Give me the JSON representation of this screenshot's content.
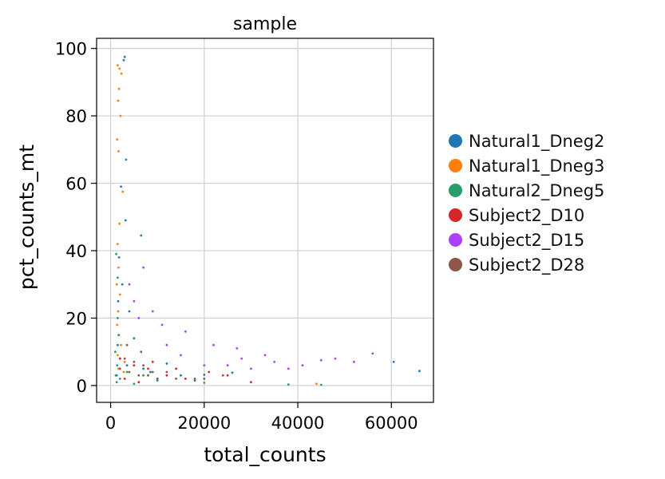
{
  "chart_data": {
    "type": "scatter",
    "title": "sample",
    "xlabel": "total_counts",
    "ylabel": "pct_counts_mt",
    "xlim": [
      -3000,
      69000
    ],
    "ylim": [
      -5,
      103
    ],
    "xticks": [
      0,
      20000,
      40000,
      60000
    ],
    "xtick_labels": [
      "0",
      "20000",
      "40000",
      "60000"
    ],
    "yticks": [
      0,
      20,
      40,
      60,
      80,
      100
    ],
    "ytick_labels": [
      "0",
      "20",
      "40",
      "60",
      "80",
      "100"
    ],
    "grid": true,
    "legend_position": "right-outside",
    "series": [
      {
        "name": "Natural1_Dneg2",
        "color": "#1f77b4",
        "points": [
          [
            3000,
            97.5
          ],
          [
            2800,
            96.5
          ],
          [
            3300,
            67
          ],
          [
            6500,
            44.5
          ],
          [
            2200,
            59
          ],
          [
            3200,
            49
          ],
          [
            1800,
            38
          ],
          [
            2500,
            30
          ],
          [
            1600,
            25
          ],
          [
            4000,
            22
          ],
          [
            8500,
            4
          ],
          [
            15000,
            3
          ],
          [
            20000,
            3.2
          ],
          [
            26000,
            3.8
          ],
          [
            66000,
            4.3
          ],
          [
            60500,
            7
          ],
          [
            12000,
            6.5
          ],
          [
            5000,
            14
          ],
          [
            1500,
            12
          ],
          [
            2000,
            8
          ],
          [
            3500,
            6
          ],
          [
            7000,
            5
          ],
          [
            10000,
            2
          ],
          [
            18000,
            1.5
          ],
          [
            1300,
            3
          ]
        ]
      },
      {
        "name": "Natural1_Dneg3",
        "color": "#ff7f0e",
        "points": [
          [
            1500,
            95
          ],
          [
            1900,
            94
          ],
          [
            2300,
            92.5
          ],
          [
            1800,
            88
          ],
          [
            1600,
            84.5
          ],
          [
            2100,
            80
          ],
          [
            1400,
            73
          ],
          [
            1700,
            69.5
          ],
          [
            2600,
            57.5
          ],
          [
            1900,
            48
          ],
          [
            1500,
            42
          ],
          [
            1700,
            35
          ],
          [
            1300,
            30
          ],
          [
            2000,
            27
          ],
          [
            1600,
            22
          ],
          [
            1400,
            18
          ],
          [
            1800,
            15
          ],
          [
            2200,
            12
          ],
          [
            1500,
            9
          ],
          [
            3000,
            7
          ],
          [
            44000,
            0.5
          ],
          [
            2800,
            4
          ],
          [
            1700,
            5
          ]
        ]
      },
      {
        "name": "Natural2_Dneg5",
        "color": "#279e68",
        "points": [
          [
            1200,
            39
          ],
          [
            1500,
            32
          ],
          [
            1000,
            10
          ],
          [
            1400,
            6
          ],
          [
            1100,
            3
          ],
          [
            1300,
            1
          ],
          [
            5000,
            0.5
          ],
          [
            10000,
            1.5
          ],
          [
            20000,
            0.8
          ],
          [
            38000,
            0.3
          ],
          [
            45000,
            0.2
          ],
          [
            2000,
            2
          ],
          [
            3500,
            4
          ],
          [
            7000,
            3
          ],
          [
            1700,
            15
          ],
          [
            1500,
            20
          ]
        ]
      },
      {
        "name": "Subject2_D10",
        "color": "#d62728",
        "points": [
          [
            2000,
            8
          ],
          [
            5000,
            6
          ],
          [
            8000,
            5
          ],
          [
            12000,
            3
          ],
          [
            16000,
            2
          ],
          [
            21000,
            4
          ],
          [
            3000,
            2
          ],
          [
            6000,
            1
          ],
          [
            9000,
            7
          ],
          [
            14000,
            5
          ],
          [
            25000,
            3
          ],
          [
            30000,
            1
          ]
        ]
      },
      {
        "name": "Subject2_D15",
        "color": "#aa40fc",
        "points": [
          [
            7000,
            35
          ],
          [
            5000,
            25
          ],
          [
            9000,
            22
          ],
          [
            4000,
            30
          ],
          [
            11000,
            18
          ],
          [
            16000,
            16
          ],
          [
            22000,
            12
          ],
          [
            28000,
            8
          ],
          [
            35000,
            7
          ],
          [
            45000,
            7.5
          ],
          [
            48000,
            8
          ],
          [
            52000,
            7
          ],
          [
            56000,
            9.5
          ],
          [
            41000,
            6
          ],
          [
            38000,
            5
          ],
          [
            30000,
            5
          ],
          [
            25000,
            6
          ],
          [
            20000,
            6
          ],
          [
            12000,
            12
          ],
          [
            6000,
            20
          ],
          [
            15000,
            9
          ],
          [
            33000,
            9
          ],
          [
            27000,
            11
          ]
        ]
      },
      {
        "name": "Subject2_D28",
        "color": "#8c564b",
        "points": [
          [
            2000,
            5
          ],
          [
            4000,
            4
          ],
          [
            6000,
            3
          ],
          [
            8000,
            3
          ],
          [
            10000,
            2
          ],
          [
            14000,
            2
          ],
          [
            18000,
            2
          ],
          [
            3000,
            8
          ],
          [
            5000,
            7
          ],
          [
            7000,
            6
          ],
          [
            9000,
            4
          ],
          [
            12000,
            4
          ],
          [
            20000,
            2
          ],
          [
            24000,
            3
          ],
          [
            3500,
            12
          ],
          [
            6500,
            10
          ]
        ]
      }
    ]
  }
}
